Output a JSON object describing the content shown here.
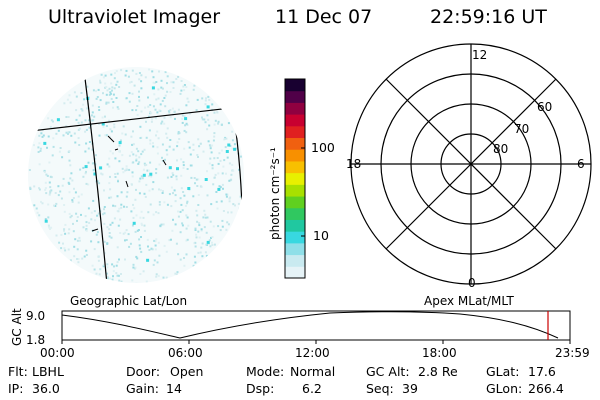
{
  "header": {
    "instrument": "Ultraviolet Imager",
    "date": "11 Dec 07",
    "time": "22:59:16 UT"
  },
  "colorbar": {
    "label": "photon cm⁻²s⁻¹",
    "ticks": [
      "100",
      "10"
    ],
    "colors": [
      "#e6f3f7",
      "#c9eaf0",
      "#8fdfe8",
      "#38d8e0",
      "#20c8a0",
      "#30c860",
      "#60d020",
      "#a8e000",
      "#e8f000",
      "#f8c000",
      "#f89000",
      "#f06010",
      "#e02020",
      "#c80030",
      "#900040",
      "#500048",
      "#180030"
    ]
  },
  "polar": {
    "mlt_labels": [
      "12",
      "18",
      "6",
      "0"
    ],
    "lat_labels": [
      "60",
      "70",
      "80"
    ]
  },
  "track": {
    "left_title": "Geographic Lat/Lon",
    "right_title": "Apex MLat/MLT",
    "axis_title": "GC Alt",
    "y_ticks": [
      "9.0",
      "1.8"
    ],
    "x_ticks": [
      "00:00",
      "06:00",
      "12:00",
      "18:00",
      "23:59"
    ],
    "current_marker_hours": 23.0,
    "marker_color": "#cc0000"
  },
  "status": {
    "row1": [
      {
        "key": "Flt:",
        "val": "LBHL"
      },
      {
        "key": "Door:",
        "val": "Open"
      },
      {
        "key": "Mode:",
        "val": "Normal"
      },
      {
        "key": "GC Alt:",
        "val": "2.8 Re"
      },
      {
        "key": "GLat:",
        "val": "17.6"
      }
    ],
    "row2": [
      {
        "key": "IP:",
        "val": "36.0"
      },
      {
        "key": "Gain:",
        "val": "14"
      },
      {
        "key": "Dsp:",
        "val": "6.2"
      },
      {
        "key": "Seq:",
        "val": "39"
      },
      {
        "key": "GLon:",
        "val": "266.4"
      }
    ]
  }
}
